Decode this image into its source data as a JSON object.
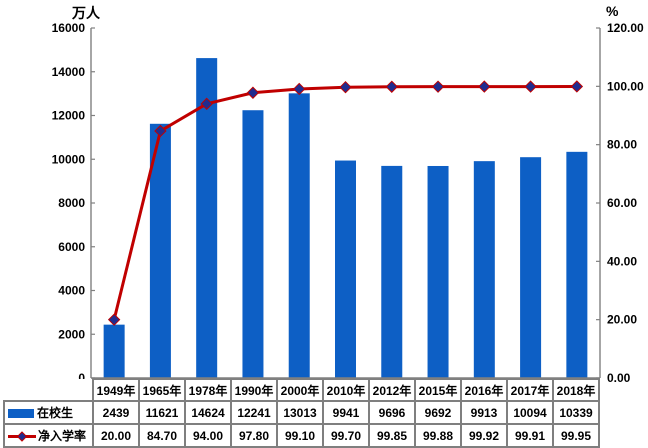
{
  "chart_data": {
    "type": "combo",
    "title": "",
    "categories": [
      "1949年",
      "1965年",
      "1978年",
      "1990年",
      "2000年",
      "2010年",
      "2012年",
      "2015年",
      "2016年",
      "2017年",
      "2018年"
    ],
    "series": [
      {
        "name": "在校生",
        "type": "bar",
        "color": "#0d5fc5",
        "axis": "left",
        "values": [
          2439,
          11621,
          14624,
          12241,
          13013,
          9941,
          9696,
          9692,
          9913,
          10094,
          10339
        ]
      },
      {
        "name": "净入学率",
        "type": "line",
        "color": "#c00000",
        "marker": "diamond",
        "marker_color": "#202c8f",
        "axis": "right",
        "values": [
          20.0,
          84.7,
          94.0,
          97.8,
          99.1,
          99.7,
          99.85,
          99.88,
          99.92,
          99.91,
          99.95
        ]
      }
    ],
    "left_axis": {
      "title": "万人",
      "min": 0,
      "max": 16000,
      "step": 2000,
      "decimals": 0
    },
    "right_axis": {
      "title": "%",
      "min": 0,
      "max": 120,
      "step": 20,
      "decimals": 2
    },
    "grid": false,
    "legend_position": "table-row-labels",
    "axis_color": "#808080",
    "table_border_color": "#7f7f7f"
  }
}
